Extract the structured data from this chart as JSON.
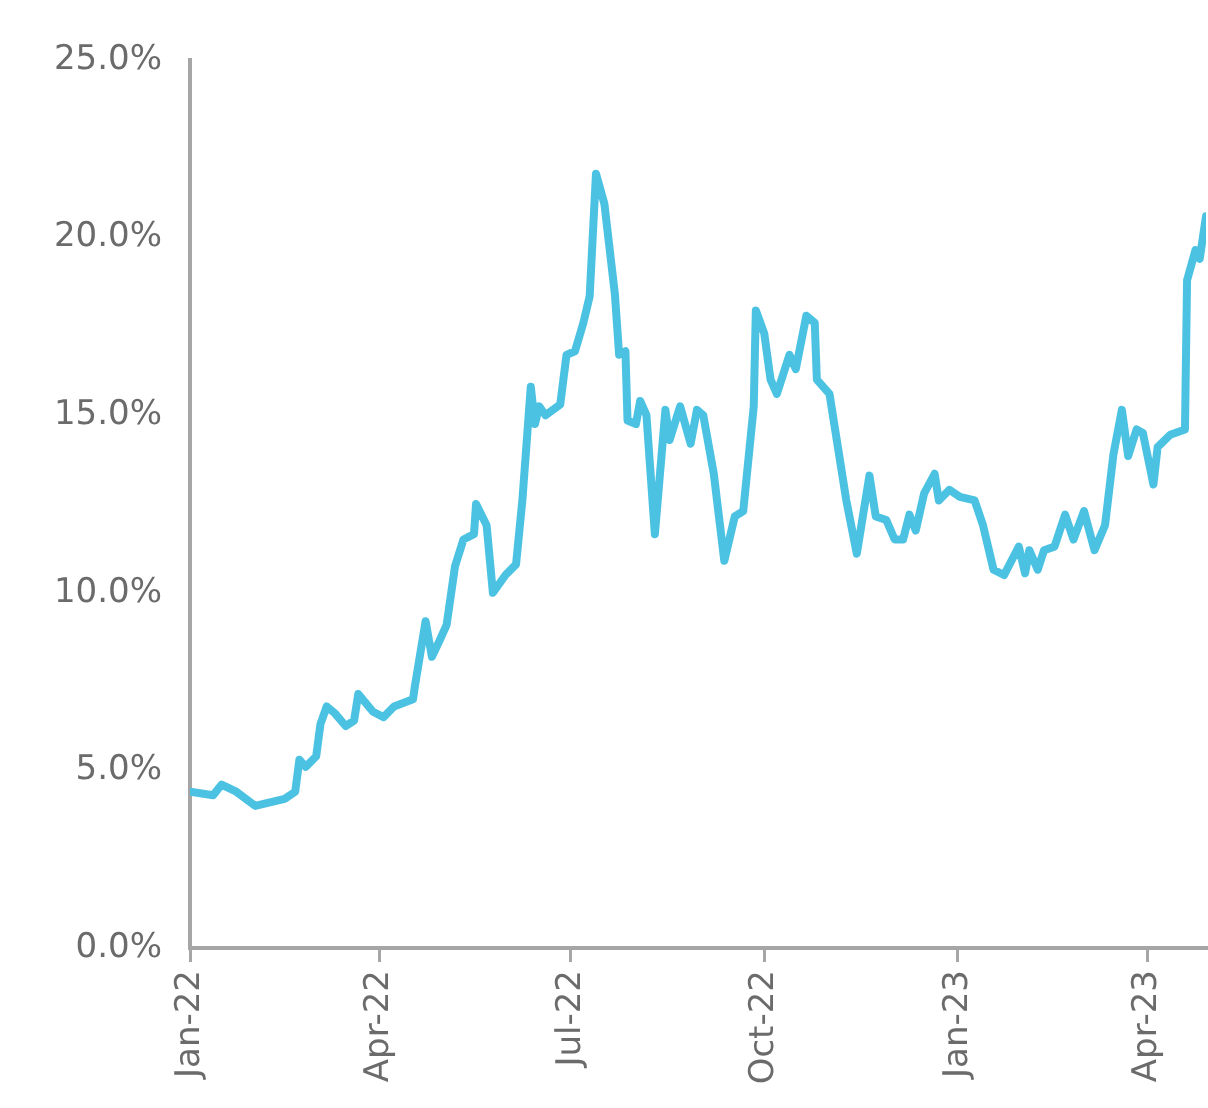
{
  "chart_data": {
    "type": "line",
    "color": "#4cc2e2",
    "x": [
      "2022-01-01",
      "2022-01-12",
      "2022-01-16",
      "2022-01-23",
      "2022-02-01",
      "2022-02-15",
      "2022-02-20",
      "2022-02-22",
      "2022-02-25",
      "2022-03-02",
      "2022-03-04",
      "2022-03-07",
      "2022-03-11",
      "2022-03-16",
      "2022-03-20",
      "2022-03-22",
      "2022-03-29",
      "2022-04-03",
      "2022-04-08",
      "2022-04-17",
      "2022-04-18",
      "2022-04-23",
      "2022-04-26",
      "2022-04-30",
      "2022-05-03",
      "2022-05-07",
      "2022-05-11",
      "2022-05-16",
      "2022-05-17",
      "2022-05-22",
      "2022-05-25",
      "2022-05-31",
      "2022-06-05",
      "2022-06-08",
      "2022-06-12",
      "2022-06-14",
      "2022-06-16",
      "2022-06-19",
      "2022-06-26",
      "2022-06-29",
      "2022-07-03",
      "2022-07-07",
      "2022-07-10",
      "2022-07-13",
      "2022-07-17",
      "2022-07-22",
      "2022-07-24",
      "2022-07-27",
      "2022-07-28",
      "2022-08-01",
      "2022-08-03",
      "2022-08-06",
      "2022-08-10",
      "2022-08-15",
      "2022-08-17",
      "2022-08-22",
      "2022-08-27",
      "2022-08-30",
      "2022-09-02",
      "2022-09-07",
      "2022-09-12",
      "2022-09-17",
      "2022-09-21",
      "2022-09-26",
      "2022-09-27",
      "2022-10-01",
      "2022-10-04",
      "2022-10-07",
      "2022-10-13",
      "2022-10-16",
      "2022-10-21",
      "2022-10-25",
      "2022-10-26",
      "2022-11-01",
      "2022-11-09",
      "2022-11-14",
      "2022-11-20",
      "2022-11-23",
      "2022-11-28",
      "2022-12-02",
      "2022-12-06",
      "2022-12-09",
      "2022-12-12",
      "2022-12-16",
      "2022-12-21",
      "2022-12-23",
      "2022-12-28",
      "2023-01-02",
      "2023-01-09",
      "2023-01-13",
      "2023-01-18",
      "2023-01-23",
      "2023-01-30",
      "2023-02-02",
      "2023-02-04",
      "2023-02-08",
      "2023-02-11",
      "2023-02-16",
      "2023-02-21",
      "2023-02-25",
      "2023-03-02",
      "2023-03-07",
      "2023-03-12",
      "2023-03-16",
      "2023-03-20",
      "2023-03-23",
      "2023-03-27",
      "2023-03-30",
      "2023-04-04",
      "2023-04-06",
      "2023-04-12",
      "2023-04-19",
      "2023-04-20",
      "2023-04-24",
      "2023-04-26",
      "2023-04-29"
    ],
    "values": [
      4.4,
      4.3,
      4.6,
      4.4,
      4.0,
      4.2,
      4.4,
      5.3,
      5.1,
      5.4,
      6.3,
      6.8,
      6.6,
      6.25,
      6.4,
      7.15,
      6.65,
      6.5,
      6.8,
      7.0,
      7.4,
      9.2,
      8.2,
      8.7,
      9.1,
      10.75,
      11.5,
      11.65,
      12.5,
      11.9,
      10.0,
      10.5,
      10.8,
      12.6,
      15.8,
      14.75,
      15.25,
      15.0,
      15.3,
      16.7,
      16.8,
      17.6,
      18.35,
      21.8,
      20.95,
      18.4,
      16.7,
      16.8,
      14.85,
      14.75,
      15.4,
      15.0,
      11.65,
      15.15,
      14.3,
      15.25,
      14.2,
      15.15,
      15.0,
      13.35,
      10.9,
      12.15,
      12.3,
      15.25,
      17.95,
      17.3,
      16.0,
      15.6,
      16.7,
      16.3,
      17.8,
      17.6,
      16.0,
      15.6,
      12.6,
      11.1,
      13.3,
      12.15,
      12.05,
      11.5,
      11.5,
      12.2,
      11.75,
      12.8,
      13.35,
      12.6,
      12.9,
      12.7,
      12.6,
      11.9,
      10.65,
      10.5,
      11.3,
      10.55,
      11.2,
      10.65,
      11.2,
      11.3,
      12.2,
      11.5,
      12.3,
      11.2,
      11.9,
      13.9,
      15.15,
      13.85,
      14.6,
      14.5,
      13.05,
      14.1,
      14.45,
      14.6,
      18.8,
      19.65,
      19.4,
      20.6
    ],
    "xlim": [
      "2022-01-01",
      "2023-04-29"
    ],
    "xticks": [
      {
        "value": "2022-01-01",
        "label": "Jan-22"
      },
      {
        "value": "2022-04-01",
        "label": "Apr-22"
      },
      {
        "value": "2022-07-01",
        "label": "Jul-22"
      },
      {
        "value": "2022-10-01",
        "label": "Oct-22"
      },
      {
        "value": "2023-01-01",
        "label": "Jan-23"
      },
      {
        "value": "2023-04-01",
        "label": "Apr-23"
      }
    ],
    "ylim": [
      0,
      25
    ],
    "yticks": [
      {
        "value": 0,
        "label": "0.0%"
      },
      {
        "value": 5,
        "label": "5.0%"
      },
      {
        "value": 10,
        "label": "10.0%"
      },
      {
        "value": 15,
        "label": "15.0%"
      },
      {
        "value": 20,
        "label": "20.0%"
      },
      {
        "value": 25,
        "label": "25.0%"
      }
    ]
  }
}
